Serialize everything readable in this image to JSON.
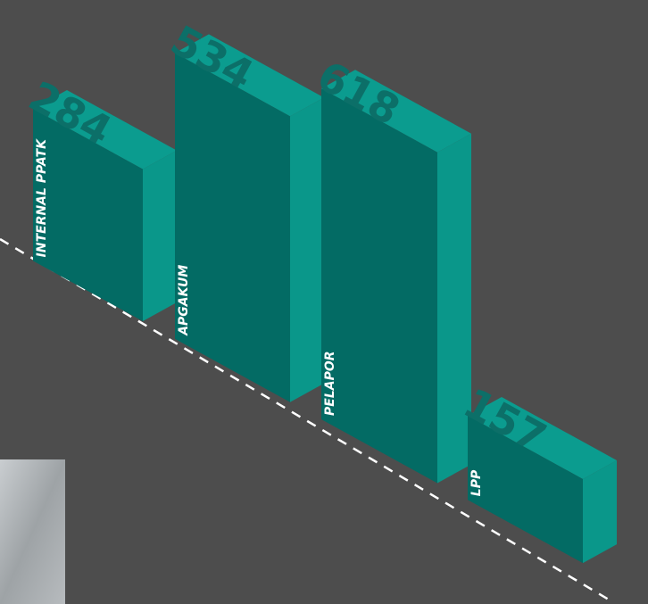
{
  "chart_data": {
    "type": "bar",
    "categories": [
      "INTERNAL PPATK",
      "APGAKUM",
      "PELAPOR",
      "LPP"
    ],
    "values": [
      284,
      534,
      618,
      157
    ],
    "color": "#036b64",
    "side_color": "#0a978a",
    "top_color": "#0b9c8f"
  }
}
